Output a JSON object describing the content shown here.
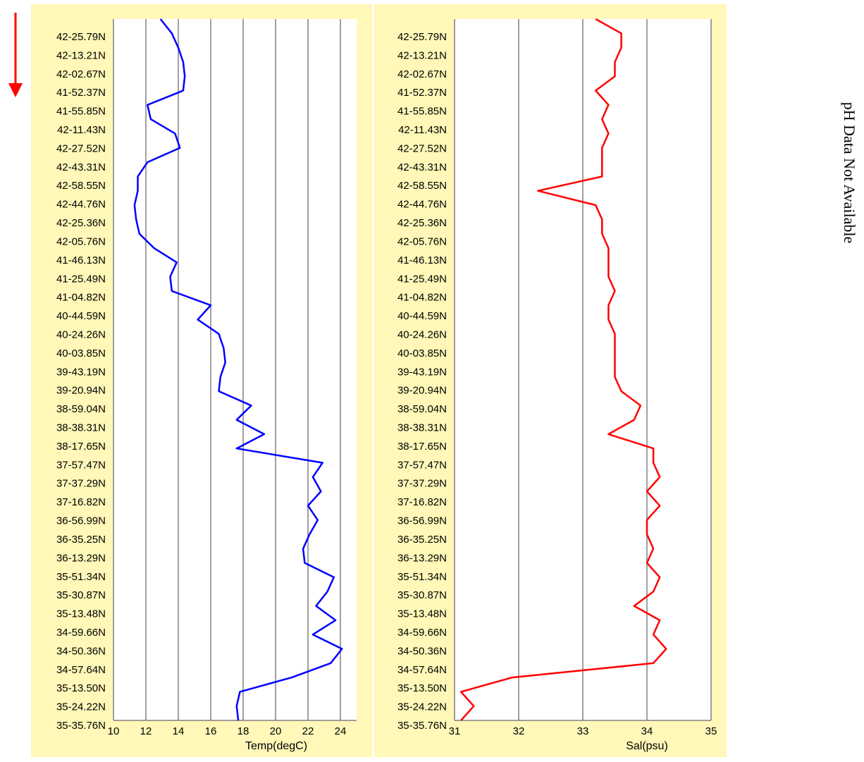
{
  "direction_arrow": {
    "icon": "down-arrow-icon",
    "color": "#ff0000"
  },
  "note": "pH Data Not Available",
  "colors": {
    "panel_background": "#fff8b8",
    "plot_background": "#ffffff",
    "grid": "#808080"
  },
  "chart_data": [
    {
      "type": "line",
      "xlabel": "Temp(degC)",
      "ylabel": "",
      "xlim": [
        10,
        25
      ],
      "xticks": [
        10,
        12,
        14,
        16,
        18,
        20,
        22,
        24
      ],
      "grid": "vertical",
      "line_color": "#0000ff",
      "y_tick_labels": [
        "42-25.79N",
        "42-13.21N",
        "42-02.67N",
        "41-52.37N",
        "41-55.85N",
        "42-11.43N",
        "42-27.52N",
        "42-43.31N",
        "42-58.55N",
        "42-44.76N",
        "42-25.36N",
        "42-05.76N",
        "41-46.13N",
        "41-25.49N",
        "41-04.82N",
        "40-44.59N",
        "40-24.26N",
        "40-03.85N",
        "39-43.19N",
        "39-20.94N",
        "38-59.04N",
        "38-38.31N",
        "38-17.65N",
        "37-57.47N",
        "37-37.29N",
        "37-16.82N",
        "36-56.99N",
        "36-35.25N",
        "36-13.29N",
        "35-51.34N",
        "35-30.87N",
        "35-13.48N",
        "34-59.66N",
        "34-50.36N",
        "34-57.64N",
        "35-13.50N",
        "35-24.22N",
        "35-35.76N"
      ],
      "series": [
        {
          "values": [
            12.9,
            13.6,
            14.0,
            14.3,
            14.4,
            14.3,
            12.1,
            12.3,
            13.8,
            14.1,
            12.1,
            11.5,
            11.5,
            11.3,
            11.4,
            11.6,
            12.5,
            13.9,
            13.5,
            13.6,
            16.0,
            15.2,
            16.5,
            16.8,
            16.9,
            16.6,
            16.5,
            18.5,
            17.6,
            19.3,
            17.6,
            22.9,
            22.3,
            22.8,
            22.0,
            22.6,
            22.1,
            21.7,
            21.8,
            23.6,
            23.2,
            22.5,
            23.7,
            22.3,
            24.1,
            23.4,
            21.0,
            17.8,
            17.6,
            17.7
          ]
        }
      ]
    },
    {
      "type": "line",
      "xlabel": "Sal(psu)",
      "ylabel": "",
      "xlim": [
        31,
        35
      ],
      "xticks": [
        31,
        32,
        33,
        34,
        35
      ],
      "grid": "vertical",
      "line_color": "#ff0000",
      "y_tick_labels": [
        "42-25.79N",
        "42-13.21N",
        "42-02.67N",
        "41-52.37N",
        "41-55.85N",
        "42-11.43N",
        "42-27.52N",
        "42-43.31N",
        "42-58.55N",
        "42-44.76N",
        "42-25.36N",
        "42-05.76N",
        "41-46.13N",
        "41-25.49N",
        "41-04.82N",
        "40-44.59N",
        "40-24.26N",
        "40-03.85N",
        "39-43.19N",
        "39-20.94N",
        "38-59.04N",
        "38-38.31N",
        "38-17.65N",
        "37-57.47N",
        "37-37.29N",
        "37-16.82N",
        "36-56.99N",
        "36-35.25N",
        "36-13.29N",
        "35-51.34N",
        "35-30.87N",
        "35-13.48N",
        "34-59.66N",
        "34-50.36N",
        "34-57.64N",
        "35-13.50N",
        "35-24.22N",
        "35-35.76N"
      ],
      "series": [
        {
          "values": [
            33.2,
            33.6,
            33.6,
            33.5,
            33.5,
            33.2,
            33.4,
            33.3,
            33.4,
            33.3,
            33.3,
            33.3,
            32.3,
            33.2,
            33.3,
            33.3,
            33.4,
            33.4,
            33.4,
            33.5,
            33.4,
            33.4,
            33.5,
            33.5,
            33.5,
            33.5,
            33.6,
            33.9,
            33.8,
            33.4,
            34.1,
            34.1,
            34.2,
            34.0,
            34.2,
            34.0,
            34.0,
            34.1,
            34.0,
            34.2,
            34.1,
            33.8,
            34.2,
            34.1,
            34.3,
            34.1,
            31.9,
            31.1,
            31.3,
            31.1
          ]
        }
      ]
    }
  ]
}
